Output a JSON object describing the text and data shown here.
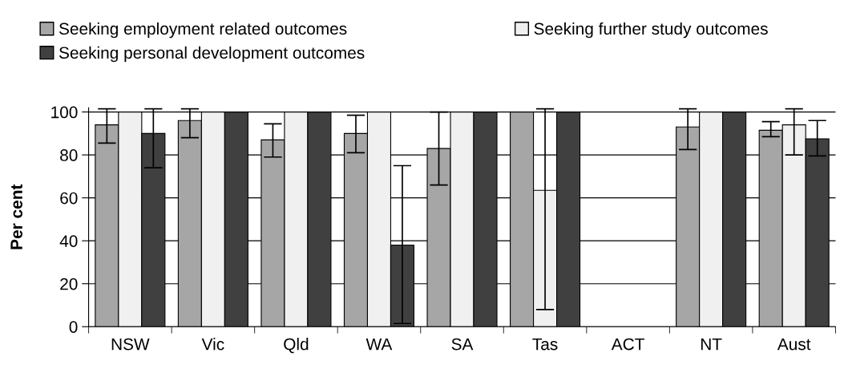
{
  "chart_data": {
    "type": "bar",
    "ylabel": "Per cent",
    "categories": [
      "NSW",
      "Vic",
      "Qld",
      "WA",
      "SA",
      "Tas",
      "ACT",
      "NT",
      "Aust"
    ],
    "series": [
      {
        "name": "Seeking employment related outcomes",
        "color": "#a6a6a6",
        "values": [
          94,
          96,
          87,
          90,
          83,
          100,
          null,
          93,
          91.5
        ],
        "errors": [
          [
            85.5,
            101.5
          ],
          [
            88,
            101.5
          ],
          [
            79,
            94.5
          ],
          [
            81,
            98.5
          ],
          [
            66,
            100
          ],
          null,
          null,
          [
            82.5,
            101.5
          ],
          [
            88.5,
            95.5
          ]
        ]
      },
      {
        "name": "Seeking further study outcomes",
        "color": "#f0f0f0",
        "values": [
          100,
          100,
          100,
          100,
          100,
          63.5,
          null,
          100,
          94
        ],
        "errors": [
          null,
          null,
          null,
          null,
          null,
          [
            8,
            101.5
          ],
          null,
          null,
          [
            80,
            101.5
          ]
        ]
      },
      {
        "name": "Seeking personal development outcomes",
        "color": "#404040",
        "values": [
          90,
          100,
          100,
          38,
          100,
          100,
          null,
          100,
          87.5
        ],
        "errors": [
          [
            74,
            101.5
          ],
          null,
          null,
          [
            1.5,
            75
          ],
          null,
          null,
          null,
          null,
          [
            79.5,
            96
          ]
        ]
      }
    ],
    "ylim": [
      0,
      102
    ],
    "yticks": [
      0,
      20,
      40,
      60,
      80,
      100
    ],
    "grid": "y",
    "legend": "top"
  }
}
